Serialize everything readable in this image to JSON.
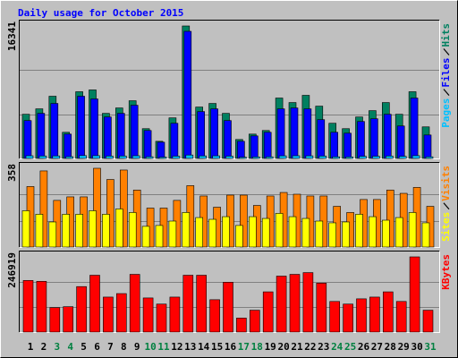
{
  "chart_data": [
    {
      "type": "bar",
      "title": "Daily usage for October 2015",
      "ylim": [
        0,
        16341
      ],
      "yticks": [
        16341
      ],
      "series": [
        {
          "name": "Hits",
          "color": "#008060",
          "values": [
            5449,
            6116,
            7673,
            3225,
            8229,
            8451,
            5560,
            6227,
            7117,
            3670,
            2113,
            5004,
            16341,
            6338,
            6783,
            5560,
            2335,
            3002,
            3447,
            7450,
            6894,
            7784,
            6450,
            4337,
            3670,
            5115,
            5894,
            6894,
            5449,
            8229,
            3892
          ]
        },
        {
          "name": "Files",
          "color": "#0000ff",
          "values": [
            4670,
            5560,
            6783,
            3002,
            7673,
            7339,
            5115,
            5560,
            6561,
            3447,
            2002,
            4337,
            15679,
            5782,
            6116,
            4670,
            2113,
            2780,
            3225,
            6116,
            6227,
            6116,
            4782,
            3225,
            3114,
            4559,
            4893,
            5449,
            4003,
            7450,
            2891
          ]
        },
        {
          "name": "Pages",
          "color": "#00c0ff",
          "values": [
            330,
            300,
            310,
            220,
            350,
            340,
            290,
            300,
            330,
            210,
            160,
            280,
            420,
            310,
            320,
            280,
            150,
            190,
            200,
            320,
            330,
            320,
            290,
            200,
            190,
            260,
            270,
            300,
            260,
            340,
            200
          ]
        }
      ]
    },
    {
      "type": "bar",
      "ylim": [
        0,
        358
      ],
      "yticks": [
        358
      ],
      "series": [
        {
          "name": "Visits",
          "color": "#ff8000",
          "values": [
            275,
            346,
            212,
            228,
            228,
            358,
            307,
            350,
            259,
            177,
            177,
            212,
            279,
            232,
            181,
            236,
            236,
            189,
            232,
            248,
            240,
            232,
            232,
            185,
            157,
            216,
            216,
            259,
            244,
            271,
            185
          ]
        },
        {
          "name": "Sites",
          "color": "#ffff00",
          "values": [
            165,
            149,
            114,
            149,
            149,
            165,
            149,
            173,
            157,
            94,
            98,
            118,
            157,
            134,
            126,
            138,
            98,
            138,
            130,
            153,
            138,
            130,
            118,
            110,
            114,
            149,
            138,
            122,
            134,
            157,
            110
          ]
        }
      ]
    },
    {
      "type": "bar",
      "ylim": [
        0,
        246919
      ],
      "yticks": [
        246919
      ],
      "categories": [
        "1",
        "2",
        "3",
        "4",
        "5",
        "6",
        "7",
        "8",
        "9",
        "10",
        "11",
        "12",
        "13",
        "14",
        "15",
        "16",
        "17",
        "18",
        "19",
        "20",
        "21",
        "22",
        "23",
        "24",
        "25",
        "26",
        "27",
        "28",
        "29",
        "30",
        "31"
      ],
      "category_colors": [
        "#000000",
        "#000000",
        "#008040",
        "#008040",
        "#000000",
        "#000000",
        "#000000",
        "#000000",
        "#000000",
        "#008040",
        "#008040",
        "#000000",
        "#000000",
        "#000000",
        "#000000",
        "#000000",
        "#008040",
        "#008040",
        "#000000",
        "#000000",
        "#000000",
        "#000000",
        "#000000",
        "#008040",
        "#008040",
        "#000000",
        "#000000",
        "#000000",
        "#000000",
        "#000000",
        "#008040"
      ],
      "series": [
        {
          "name": "KBytes",
          "color": "#ff0000",
          "values": [
            169389,
            166518,
            80388,
            83259,
            149292,
            186615,
            114840,
            126324,
            189486,
            111969,
            91872,
            114840,
            186615,
            186615,
            106227,
            163647,
            45936,
            71775,
            132066,
            183744,
            189486,
            195228,
            160776,
            100485,
            91872,
            109098,
            114840,
            132066,
            100485,
            246919,
            71775
          ]
        }
      ]
    }
  ]
}
